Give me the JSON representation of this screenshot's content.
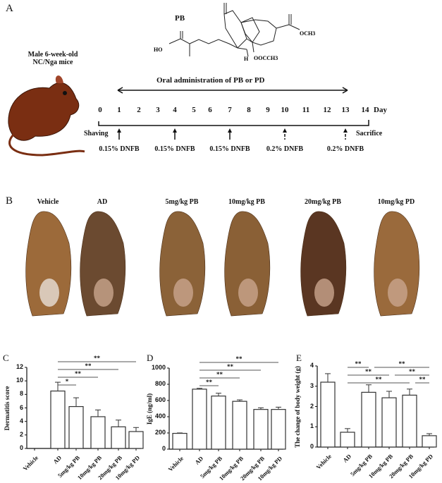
{
  "panel_a": {
    "label": "A",
    "compound_label": "PB",
    "chem_groups": [
      "HO",
      "O",
      "OCH3",
      "OOCCH3",
      "H"
    ],
    "mice_text": [
      "Male 6-week-old",
      "NC/Nga mice"
    ],
    "oral_text": "Oral administration  of PB or PD",
    "days": [
      "0",
      "1",
      "2",
      "3",
      "4",
      "5",
      "6",
      "7",
      "8",
      "9",
      "10",
      "11",
      "12",
      "13",
      "14"
    ],
    "day_unit": "Day",
    "shaving": "Shaving",
    "sacrifice": "Sacrifice",
    "dnfb": [
      {
        "day": 1,
        "label": "0.15% DNFB",
        "arrow": "solid"
      },
      {
        "day": 4,
        "label": "0.15% DNFB",
        "arrow": "solid"
      },
      {
        "day": 7,
        "label": "0.15% DNFB",
        "arrow": "solid"
      },
      {
        "day": 10,
        "label": "0.2% DNFB",
        "arrow": "dashed"
      },
      {
        "day": 13,
        "label": "0.2% DNFB",
        "arrow": "dashed"
      }
    ],
    "mouse_color": "#7a2e12"
  },
  "panel_b": {
    "label": "B",
    "groups": [
      "Vehicle",
      "AD",
      "5mg/kg PB",
      "10mg/kg PB",
      "20mg/kg PB",
      "10mg/kg PD"
    ]
  },
  "chart_data": [
    {
      "panel": "C",
      "type": "bar",
      "categories": [
        "Vehicle",
        "AD",
        "5mg/kg PB",
        "10mg/kg PB",
        "20mg/kg PB",
        "10mg/kg PD"
      ],
      "values": [
        0,
        8.5,
        6.2,
        4.7,
        3.2,
        2.5
      ],
      "errors": [
        0,
        1.3,
        1.3,
        1.0,
        1.0,
        0.6
      ],
      "ylabel": "Dermatitis score",
      "ylim": [
        0,
        12
      ],
      "yticks": [
        0,
        2,
        4,
        6,
        8,
        10,
        12
      ],
      "significance": [
        {
          "from": 1,
          "to": 2,
          "label": "*"
        },
        {
          "from": 1,
          "to": 3,
          "label": "**"
        },
        {
          "from": 1,
          "to": 4,
          "label": "**"
        },
        {
          "from": 1,
          "to": 5,
          "label": "**"
        }
      ]
    },
    {
      "panel": "D",
      "type": "bar",
      "categories": [
        "Vehicle",
        "AD",
        "5mg/kg PB",
        "10mg/kg PB",
        "20mg/kg PB",
        "10mg/kg PD"
      ],
      "values": [
        195,
        740,
        655,
        590,
        490,
        490
      ],
      "errors": [
        5,
        10,
        35,
        18,
        20,
        28
      ],
      "ylabel": "IgE (ng/ml)",
      "ylim": [
        0,
        1000
      ],
      "yticks": [
        0,
        200,
        400,
        600,
        800,
        1000
      ],
      "significance": [
        {
          "from": 1,
          "to": 2,
          "label": "**"
        },
        {
          "from": 1,
          "to": 3,
          "label": "**"
        },
        {
          "from": 1,
          "to": 4,
          "label": "**"
        },
        {
          "from": 1,
          "to": 5,
          "label": "**"
        }
      ]
    },
    {
      "panel": "E",
      "type": "bar",
      "categories": [
        "Vehicle",
        "AD",
        "5mg/kg PB",
        "10mg/kg PB",
        "20mg/kg PB",
        "10mg/kg PD"
      ],
      "values": [
        3.2,
        0.73,
        2.7,
        2.43,
        2.56,
        0.56
      ],
      "errors": [
        0.42,
        0.18,
        0.37,
        0.32,
        0.3,
        0.1
      ],
      "ylabel": "The change of body weight (g)",
      "ylim": [
        0,
        4
      ],
      "yticks": [
        0,
        1,
        2,
        3,
        4
      ],
      "significance": [
        {
          "from": 1,
          "to": 2,
          "label": "**",
          "level": 0
        },
        {
          "from": 2,
          "to": 5,
          "label": "**",
          "level": 0
        },
        {
          "from": 1,
          "to": 3,
          "label": "**",
          "level": 1
        },
        {
          "from": 3,
          "to": 5,
          "label": "**",
          "level": 1
        },
        {
          "from": 1,
          "to": 4,
          "label": "**",
          "level": 2
        },
        {
          "from": 4,
          "to": 5,
          "label": "**",
          "level": 2
        }
      ]
    }
  ]
}
